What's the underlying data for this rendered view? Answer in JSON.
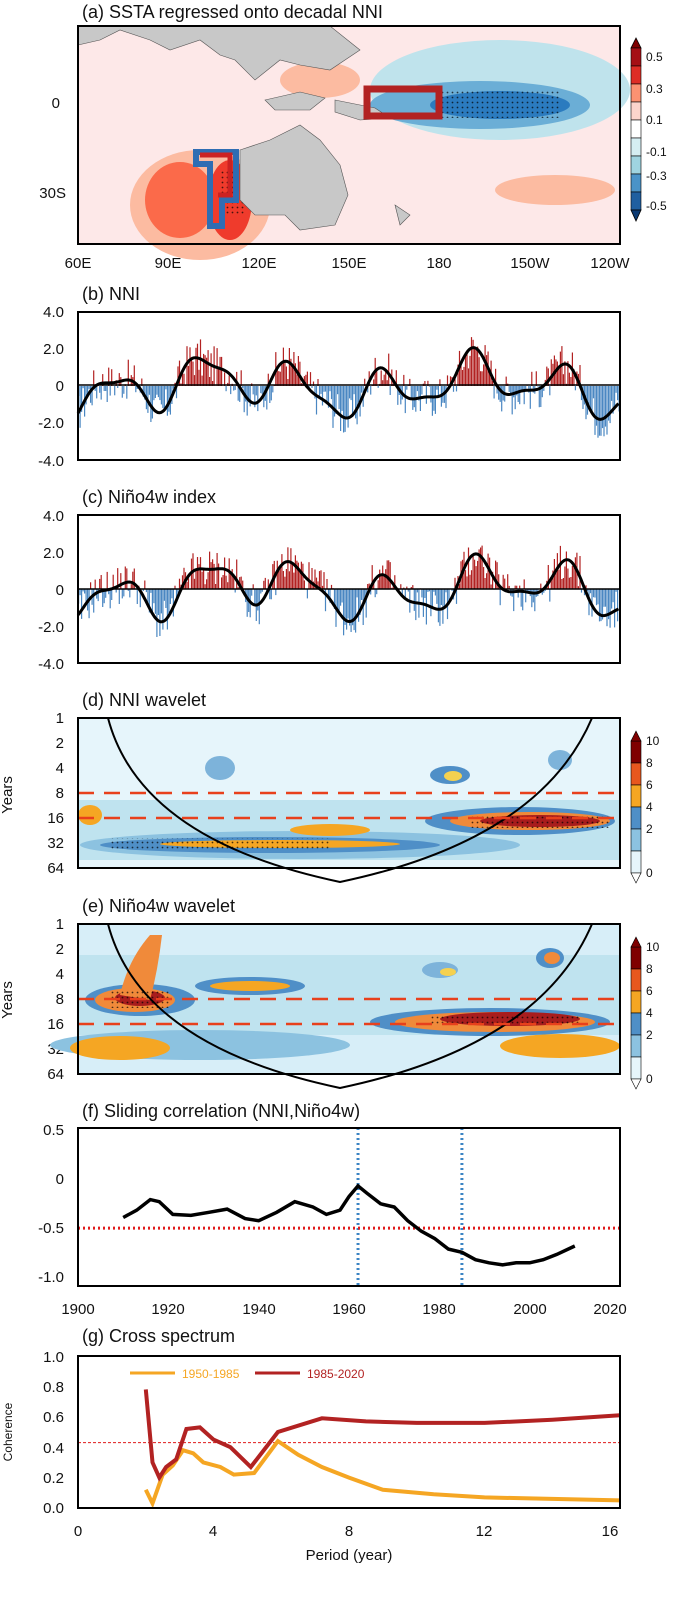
{
  "panels": {
    "a": {
      "title": "(a) SSTA regressed onto decadal NNI",
      "xticks": [
        "60E",
        "90E",
        "120E",
        "150E",
        "180",
        "150W",
        "120W"
      ],
      "yticks": [
        "0",
        "30S"
      ],
      "colorbar": [
        "0.5",
        "0.3",
        "0.1",
        "-0.1",
        "-0.3",
        "-0.5"
      ],
      "colors": [
        "#a50f15",
        "#de2d26",
        "#fc9272",
        "#fcd5cc",
        "#ffffff",
        "#d5eef2",
        "#9fd4e0",
        "#4a93c8",
        "#1f5fa0",
        "#0b3a73"
      ]
    },
    "b": {
      "title": "(b) NNI",
      "yticks": [
        "4.0",
        "2.0",
        "0",
        "-2.0",
        "-4.0"
      ]
    },
    "c": {
      "title": "(c) Niño4w index",
      "yticks": [
        "4.0",
        "2.0",
        "0",
        "-2.0",
        "-4.0"
      ]
    },
    "d": {
      "title": "(d) NNI  wavelet",
      "ylabel": "Years",
      "yticks": [
        "1",
        "2",
        "4",
        "8",
        "16",
        "32",
        "64"
      ],
      "colorbar": [
        "10",
        "8",
        "6",
        "4",
        "2",
        "0"
      ]
    },
    "e": {
      "title": "(e) Niño4w  wavelet",
      "ylabel": "Years",
      "yticks": [
        "1",
        "2",
        "4",
        "8",
        "16",
        "32",
        "64"
      ],
      "colorbar": [
        "10",
        "8",
        "6",
        "4",
        "2",
        "0"
      ]
    },
    "f": {
      "title": "(f) Sliding correlation (NNI,Niño4w)",
      "yticks": [
        "0.5",
        "0",
        "-0.5",
        "-1.0"
      ],
      "xticks": [
        "1900",
        "1920",
        "1940",
        "1960",
        "1980",
        "2000",
        "2020"
      ]
    },
    "g": {
      "title": "(g) Cross spectrum",
      "ylabel": "Coherence",
      "xlabel": "Period (year)",
      "yticks": [
        "1.0",
        "0.8",
        "0.6",
        "0.4",
        "0.2",
        "0.0"
      ],
      "xticks": [
        "0",
        "4",
        "8",
        "12",
        "16"
      ],
      "legend1": "1950-1985",
      "legend2": "1985-2020"
    }
  },
  "chart_data": [
    {
      "type": "line",
      "title": "(f) Sliding correlation (NNI,Niño4w)",
      "xlim": [
        1900,
        2020
      ],
      "ylim": [
        -1.0,
        0.5
      ],
      "series": [
        {
          "name": "sliding correlation",
          "x": [
            1910,
            1913,
            1916,
            1918,
            1921,
            1925,
            1929,
            1933,
            1937,
            1940,
            1944,
            1948,
            1952,
            1955,
            1958,
            1960,
            1962,
            1964,
            1967,
            1970,
            1973,
            1976,
            1979,
            1982,
            1985,
            1988,
            1991,
            1994,
            1997,
            2000,
            2003,
            2006,
            2010
          ],
          "values": [
            -0.35,
            -0.28,
            -0.18,
            -0.2,
            -0.32,
            -0.33,
            -0.3,
            -0.27,
            -0.36,
            -0.38,
            -0.3,
            -0.2,
            -0.25,
            -0.32,
            -0.28,
            -0.15,
            -0.05,
            -0.12,
            -0.22,
            -0.25,
            -0.38,
            -0.48,
            -0.55,
            -0.65,
            -0.68,
            -0.75,
            -0.78,
            -0.8,
            -0.78,
            -0.78,
            -0.75,
            -0.7,
            -0.62
          ]
        }
      ],
      "threshold": -0.45,
      "vlines": [
        1962,
        1985
      ]
    },
    {
      "type": "line",
      "title": "(g) Cross spectrum",
      "xlim": [
        0,
        16
      ],
      "ylim": [
        0,
        1
      ],
      "series": [
        {
          "name": "1950-1985",
          "color": "#f5a623",
          "x": [
            2.0,
            2.2,
            2.5,
            2.8,
            3.1,
            3.4,
            3.7,
            4.2,
            4.6,
            5.2,
            5.9,
            6.5,
            7.2,
            8.0,
            9.0,
            10.5,
            12.0,
            14.0,
            16.0
          ],
          "values": [
            0.12,
            0.03,
            0.22,
            0.28,
            0.38,
            0.36,
            0.3,
            0.27,
            0.22,
            0.23,
            0.44,
            0.35,
            0.27,
            0.2,
            0.12,
            0.09,
            0.07,
            0.06,
            0.05
          ]
        },
        {
          "name": "1985-2020",
          "color": "#b22222",
          "x": [
            2.0,
            2.2,
            2.4,
            2.6,
            2.9,
            3.2,
            3.6,
            4.0,
            4.5,
            5.1,
            5.9,
            7.2,
            8.5,
            10.0,
            12.0,
            14.0,
            16.0
          ],
          "values": [
            0.78,
            0.3,
            0.2,
            0.27,
            0.32,
            0.52,
            0.53,
            0.45,
            0.4,
            0.27,
            0.5,
            0.59,
            0.57,
            0.56,
            0.56,
            0.58,
            0.61
          ]
        }
      ],
      "threshold": 0.43
    }
  ]
}
